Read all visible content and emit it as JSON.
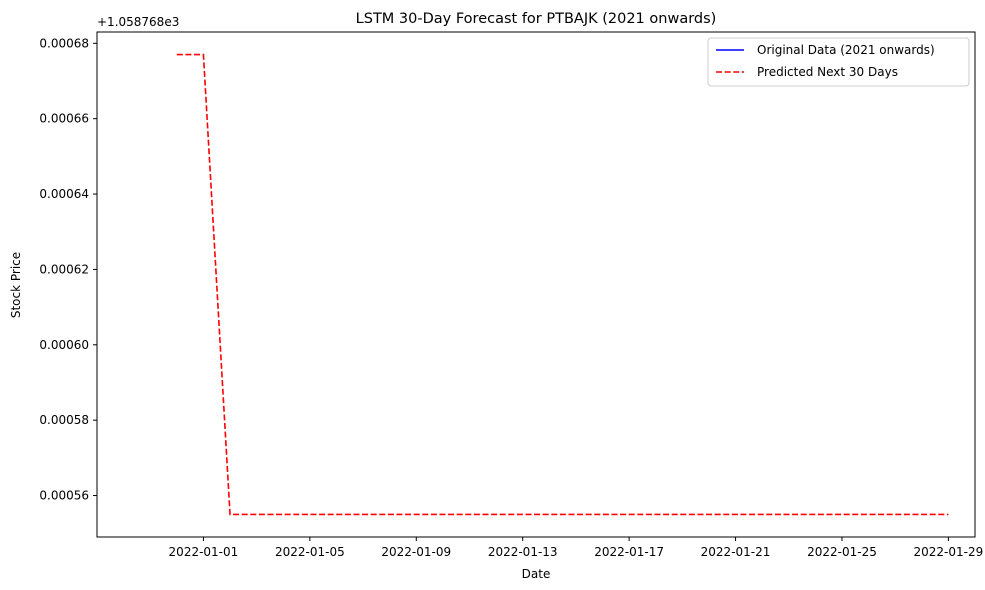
{
  "chart_data": {
    "type": "line",
    "title": "LSTM 30-Day Forecast for PTBAJK (2021 onwards)",
    "xlabel": "Date",
    "ylabel": "Stock Price",
    "offset_label": "+1.058768e3",
    "y_offset": 1058.768,
    "xlim": [
      "2021-12-28",
      "2022-01-30"
    ],
    "ylim": [
      0.000549,
      0.000683
    ],
    "x_ticks": [
      "2022-01-01",
      "2022-01-05",
      "2022-01-09",
      "2022-01-13",
      "2022-01-17",
      "2022-01-21",
      "2022-01-25",
      "2022-01-29"
    ],
    "y_ticks": [
      0.00056,
      0.00058,
      0.0006,
      0.00062,
      0.00064,
      0.00066,
      0.00068
    ],
    "y_tick_labels": [
      "0.00056",
      "0.00058",
      "0.00060",
      "0.00062",
      "0.00064",
      "0.00066",
      "0.00068"
    ],
    "grid": false,
    "legend_position": "top-right",
    "series": [
      {
        "name": "Original Data (2021 onwards)",
        "color": "#0000ff",
        "style": "solid",
        "x": [],
        "y": []
      },
      {
        "name": "Predicted Next 30 Days",
        "color": "#ff0000",
        "style": "dashed",
        "x": [
          "2021-12-31",
          "2022-01-01",
          "2022-01-02",
          "2022-01-03",
          "2022-01-04",
          "2022-01-05",
          "2022-01-06",
          "2022-01-07",
          "2022-01-08",
          "2022-01-09",
          "2022-01-10",
          "2022-01-11",
          "2022-01-12",
          "2022-01-13",
          "2022-01-14",
          "2022-01-15",
          "2022-01-16",
          "2022-01-17",
          "2022-01-18",
          "2022-01-19",
          "2022-01-20",
          "2022-01-21",
          "2022-01-22",
          "2022-01-23",
          "2022-01-24",
          "2022-01-25",
          "2022-01-26",
          "2022-01-27",
          "2022-01-28",
          "2022-01-29"
        ],
        "y": [
          0.000677,
          0.000677,
          0.000555,
          0.000555,
          0.000555,
          0.000555,
          0.000555,
          0.000555,
          0.000555,
          0.000555,
          0.000555,
          0.000555,
          0.000555,
          0.000555,
          0.000555,
          0.000555,
          0.000555,
          0.000555,
          0.000555,
          0.000555,
          0.000555,
          0.000555,
          0.000555,
          0.000555,
          0.000555,
          0.000555,
          0.000555,
          0.000555,
          0.000555,
          0.000555
        ]
      }
    ]
  }
}
